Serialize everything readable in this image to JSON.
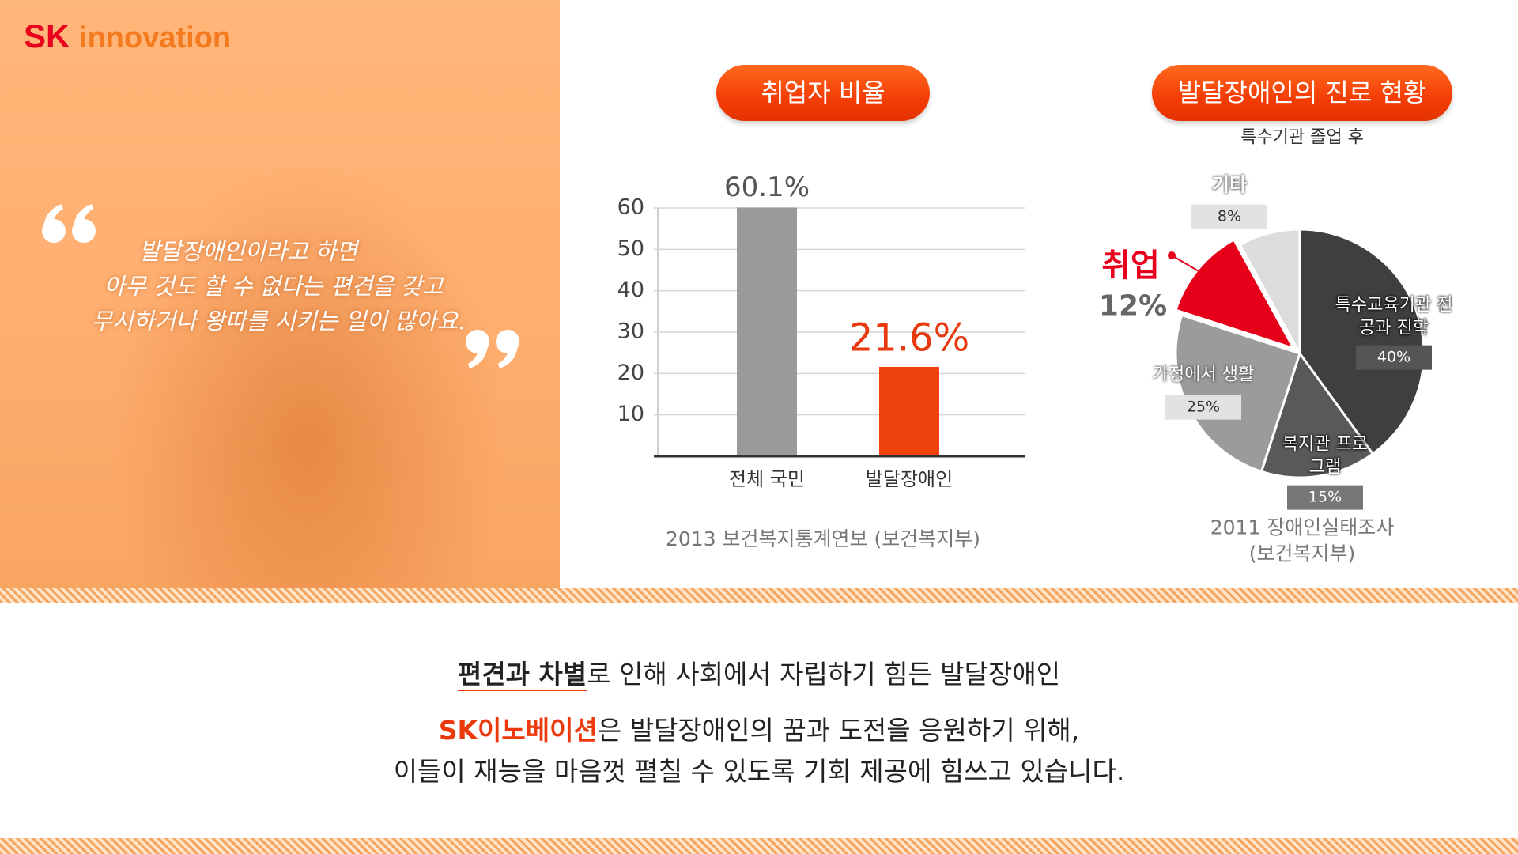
{
  "header": {
    "brand_sk": "SK",
    "brand_rest": "innovation"
  },
  "quote": {
    "lines": [
      "발달장애인이라고 하면",
      "아무 것도 할 수 없다는 편견을 갖고",
      "무시하거나 왕따를 시키는 일이 많아요."
    ]
  },
  "chart_data": [
    {
      "type": "bar",
      "title": "취업자 비율",
      "categories": [
        "전체 국민",
        "발달장애인"
      ],
      "values": [
        60.1,
        21.6
      ],
      "value_labels": [
        "60.1%",
        "21.6%"
      ],
      "colors": [
        "#9a9a9a",
        "#f0420c"
      ],
      "label_colors": [
        "#555555",
        "#e8380d"
      ],
      "ylim": [
        0,
        60
      ],
      "yticks": [
        10,
        20,
        30,
        40,
        50,
        60
      ],
      "grid": true,
      "source": "2013 보건복지통계연보 (보건복지부)"
    },
    {
      "type": "pie",
      "title": "발달장애인의 진로 현황",
      "subtitle": "특수기관 졸업 후",
      "categories": [
        "특수교육기관 전공과 진학",
        "복지관 프로그램",
        "가정에서 생활",
        "취업",
        "기타"
      ],
      "values": [
        40,
        15,
        25,
        12,
        8
      ],
      "value_labels": [
        "40%",
        "15%",
        "25%",
        "12%",
        "8%"
      ],
      "colors": [
        "#3f3f3f",
        "#595959",
        "#9b9b9b",
        "#e60019",
        "#dcdcdc"
      ],
      "source": "2011 장애인실태조사 (보건복지부)"
    }
  ],
  "footer": {
    "line1_highlight": "편견과 차별",
    "line1_rest": "로 인해 사회에서 자립하기 힘든 발달장애인",
    "line2_highlight": "SK이노베이션",
    "line2_rest": "은 발달장애인의 꿈과 도전을 응원하기 위해,",
    "line3": "이들이 재능을 마음껏 펼칠 수 있도록 기회 제공에 힘쓰고 있습니다."
  }
}
